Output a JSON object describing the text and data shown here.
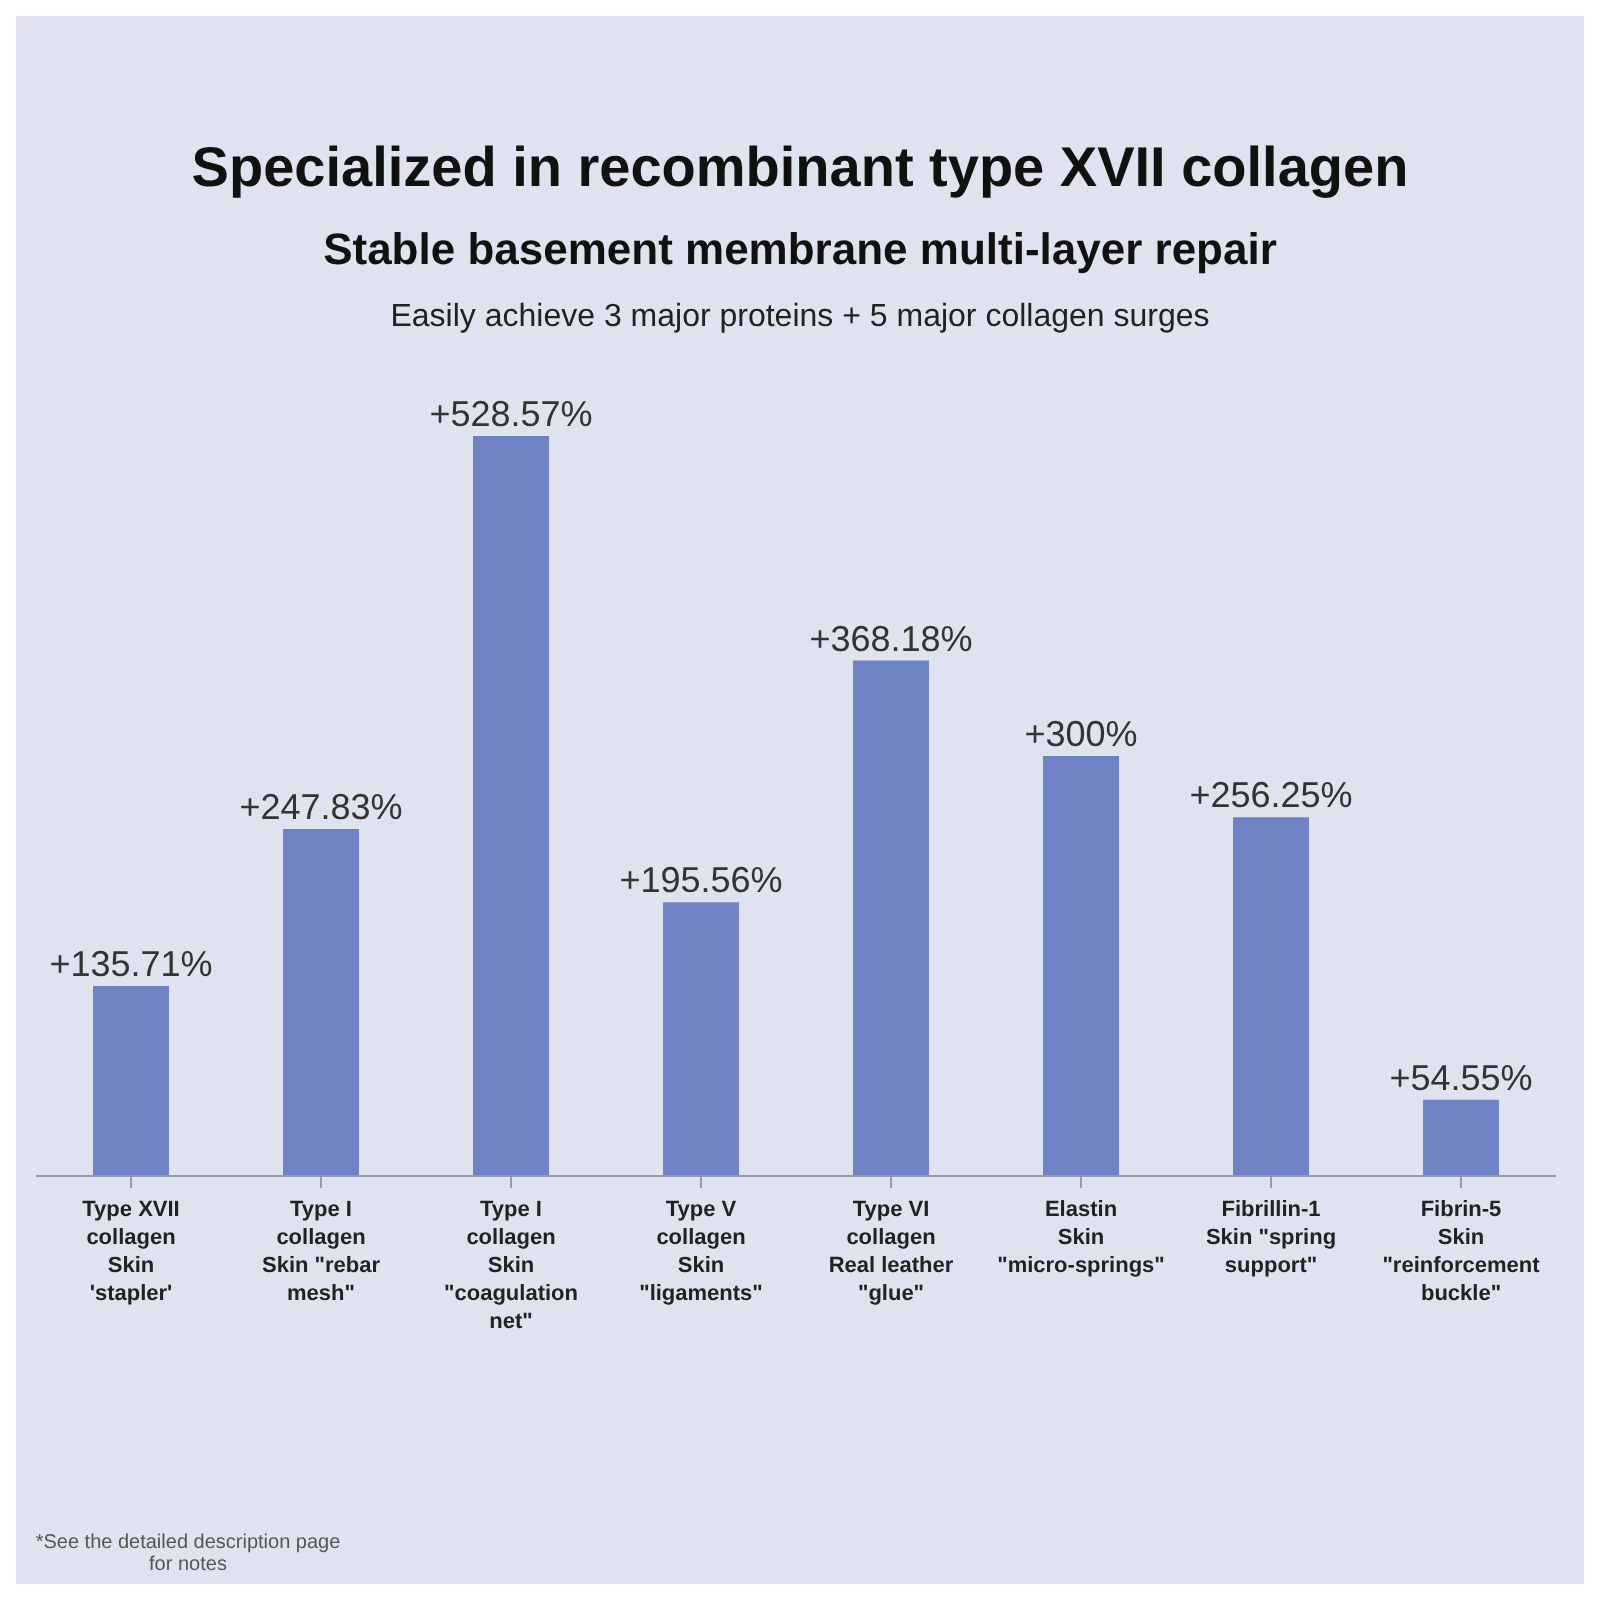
{
  "chart_data": {
    "type": "bar",
    "title": "Specialized in recombinant type XVII collagen",
    "subtitle": "Stable basement membrane multi-layer repair",
    "annotations": [
      "Easily achieve 3 major proteins + 5 major collagen surges",
      "*See the detailed description page for notes"
    ],
    "categories": [
      "Type XVII collagen\nSkin 'stapler'",
      "Type I collagen\nSkin \"rebar mesh\"",
      "Type I collagen\nSkin \"coagulation net\"",
      "Type V collagen\nSkin \"ligaments\"",
      "Type VI collagen\nReal leather \"glue\"",
      "Elastin\nSkin \"micro-springs\"",
      "Fibrillin-1\nSkin \"spring support\"",
      "Fibrin-5\nSkin \"reinforcement buckle\""
    ],
    "values": [
      135.71,
      247.83,
      528.57,
      195.56,
      368.18,
      300,
      256.25,
      54.55
    ],
    "value_labels": [
      "+135.71%",
      "+247.83%",
      "+528.57%",
      "+195.56%",
      "+368.18%",
      "+300%",
      "+256.25%",
      "+54.55%"
    ],
    "color": "#6f82c4",
    "grid": false
  }
}
